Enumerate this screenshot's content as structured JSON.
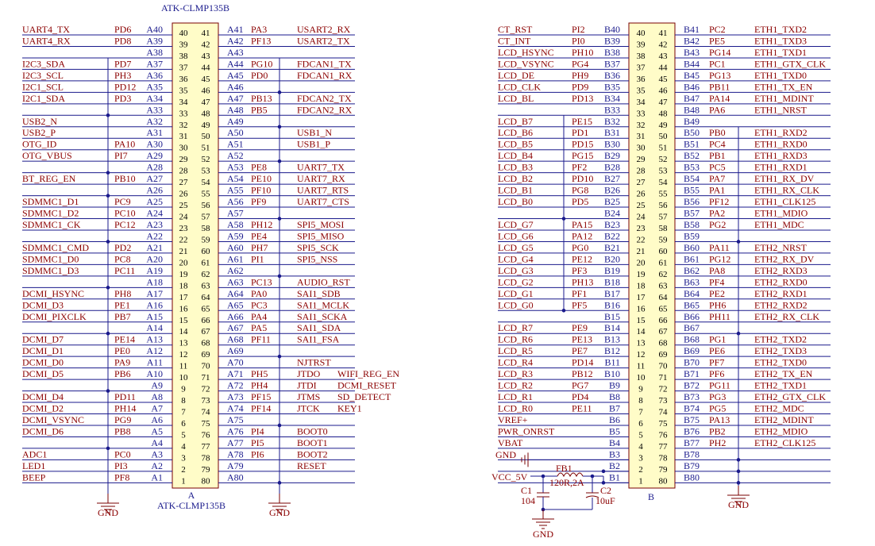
{
  "connector_a": {
    "title_top": "ATK-CLMP135B",
    "title_bottom": "ATK-CLMP135B",
    "part_label": "A",
    "gnd_left": "GND",
    "gnd_right": "GND",
    "left": [
      {
        "sig": "UART4_TX",
        "io": "PD6",
        "pin": "A40"
      },
      {
        "sig": "UART4_RX",
        "io": "PD8",
        "pin": "A39"
      },
      {
        "sig": "",
        "io": "",
        "pin": "A38"
      },
      {
        "sig": "I2C3_SDA",
        "io": "PD7",
        "pin": "A37"
      },
      {
        "sig": "I2C3_SCL",
        "io": "PH3",
        "pin": "A36"
      },
      {
        "sig": "I2C1_SCL",
        "io": "PD12",
        "pin": "A35"
      },
      {
        "sig": "I2C1_SDA",
        "io": "PD3",
        "pin": "A34"
      },
      {
        "sig": "",
        "io": "",
        "pin": "A33"
      },
      {
        "sig": "USB2_N",
        "io": "",
        "pin": "A32"
      },
      {
        "sig": "USB2_P",
        "io": "",
        "pin": "A31"
      },
      {
        "sig": "OTG_ID",
        "io": "PA10",
        "pin": "A30"
      },
      {
        "sig": "OTG_VBUS",
        "io": "PI7",
        "pin": "A29"
      },
      {
        "sig": "",
        "io": "",
        "pin": "A28"
      },
      {
        "sig": "BT_REG_EN",
        "io": "PB10",
        "pin": "A27"
      },
      {
        "sig": "",
        "io": "",
        "pin": "A26"
      },
      {
        "sig": "SDMMC1_D1",
        "io": "PC9",
        "pin": "A25"
      },
      {
        "sig": "SDMMC1_D2",
        "io": "PC10",
        "pin": "A24"
      },
      {
        "sig": "SDMMC1_CK",
        "io": "PC12",
        "pin": "A23"
      },
      {
        "sig": "",
        "io": "",
        "pin": "A22"
      },
      {
        "sig": "SDMMC1_CMD",
        "io": "PD2",
        "pin": "A21"
      },
      {
        "sig": "SDMMC1_D0",
        "io": "PC8",
        "pin": "A20"
      },
      {
        "sig": "SDMMC1_D3",
        "io": "PC11",
        "pin": "A19"
      },
      {
        "sig": "",
        "io": "",
        "pin": "A18"
      },
      {
        "sig": "DCMI_HSYNC",
        "io": "PH8",
        "pin": "A17"
      },
      {
        "sig": "DCMI_D3",
        "io": "PE1",
        "pin": "A16"
      },
      {
        "sig": "DCMI_PIXCLK",
        "io": "PB7",
        "pin": "A15"
      },
      {
        "sig": "",
        "io": "",
        "pin": "A14"
      },
      {
        "sig": "DCMI_D7",
        "io": "PE14",
        "pin": "A13"
      },
      {
        "sig": "DCMI_D1",
        "io": "PE0",
        "pin": "A12"
      },
      {
        "sig": "DCMI_D0",
        "io": "PA9",
        "pin": "A11"
      },
      {
        "sig": "DCMI_D5",
        "io": "PB6",
        "pin": "A10"
      },
      {
        "sig": "",
        "io": "",
        "pin": "A9"
      },
      {
        "sig": "DCMI_D4",
        "io": "PD11",
        "pin": "A8"
      },
      {
        "sig": "DCMI_D2",
        "io": "PH14",
        "pin": "A7"
      },
      {
        "sig": "DCMI_VSYNC",
        "io": "PG9",
        "pin": "A6"
      },
      {
        "sig": "DCMI_D6",
        "io": "PB8",
        "pin": "A5"
      },
      {
        "sig": "",
        "io": "",
        "pin": "A4"
      },
      {
        "sig": "ADC1",
        "io": "PC0",
        "pin": "A3"
      },
      {
        "sig": "LED1",
        "io": "PI3",
        "pin": "A2"
      },
      {
        "sig": "BEEP",
        "io": "PF8",
        "pin": "A1"
      }
    ],
    "right": [
      {
        "pin": "A41",
        "io": "PA3",
        "sig": "USART2_RX",
        "sig2": ""
      },
      {
        "pin": "A42",
        "io": "PF13",
        "sig": "USART2_TX",
        "sig2": ""
      },
      {
        "pin": "A43",
        "io": "",
        "sig": "",
        "sig2": ""
      },
      {
        "pin": "A44",
        "io": "PG10",
        "sig": "FDCAN1_TX",
        "sig2": ""
      },
      {
        "pin": "A45",
        "io": "PD0",
        "sig": "FDCAN1_RX",
        "sig2": ""
      },
      {
        "pin": "A46",
        "io": "",
        "sig": "",
        "sig2": ""
      },
      {
        "pin": "A47",
        "io": "PB13",
        "sig": "FDCAN2_TX",
        "sig2": ""
      },
      {
        "pin": "A48",
        "io": "PB5",
        "sig": "FDCAN2_RX",
        "sig2": ""
      },
      {
        "pin": "A49",
        "io": "",
        "sig": "",
        "sig2": ""
      },
      {
        "pin": "A50",
        "io": "",
        "sig": "USB1_N",
        "sig2": ""
      },
      {
        "pin": "A51",
        "io": "",
        "sig": "USB1_P",
        "sig2": ""
      },
      {
        "pin": "A52",
        "io": "",
        "sig": "",
        "sig2": ""
      },
      {
        "pin": "A53",
        "io": "PE8",
        "sig": "UART7_TX",
        "sig2": ""
      },
      {
        "pin": "A54",
        "io": "PE10",
        "sig": "UART7_RX",
        "sig2": ""
      },
      {
        "pin": "A55",
        "io": "PF10",
        "sig": "UART7_RTS",
        "sig2": ""
      },
      {
        "pin": "A56",
        "io": "PF9",
        "sig": "UART7_CTS",
        "sig2": ""
      },
      {
        "pin": "A57",
        "io": "",
        "sig": "",
        "sig2": ""
      },
      {
        "pin": "A58",
        "io": "PH12",
        "sig": "SPI5_MOSI",
        "sig2": ""
      },
      {
        "pin": "A59",
        "io": "PE4",
        "sig": "SPI5_MISO",
        "sig2": ""
      },
      {
        "pin": "A60",
        "io": "PH7",
        "sig": "SPI5_SCK",
        "sig2": ""
      },
      {
        "pin": "A61",
        "io": "PI1",
        "sig": "SPI5_NSS",
        "sig2": ""
      },
      {
        "pin": "A62",
        "io": "",
        "sig": "",
        "sig2": ""
      },
      {
        "pin": "A63",
        "io": "PC13",
        "sig": "AUDIO_RST",
        "sig2": ""
      },
      {
        "pin": "A64",
        "io": "PA0",
        "sig": "SAI1_SDB",
        "sig2": ""
      },
      {
        "pin": "A65",
        "io": "PC3",
        "sig": "SAI1_MCLK",
        "sig2": ""
      },
      {
        "pin": "A66",
        "io": "PA4",
        "sig": "SAI1_SCKA",
        "sig2": ""
      },
      {
        "pin": "A67",
        "io": "PA5",
        "sig": "SAI1_SDA",
        "sig2": ""
      },
      {
        "pin": "A68",
        "io": "PF11",
        "sig": "SAI1_FSA",
        "sig2": ""
      },
      {
        "pin": "A69",
        "io": "",
        "sig": "",
        "sig2": ""
      },
      {
        "pin": "A70",
        "io": "",
        "sig": "NJTRST",
        "sig2": ""
      },
      {
        "pin": "A71",
        "io": "PH5",
        "sig": "JTDO",
        "sig2": "WIFI_REG_EN"
      },
      {
        "pin": "A72",
        "io": "PH4",
        "sig": "JTDI",
        "sig2": "DCMI_RESET"
      },
      {
        "pin": "A73",
        "io": "PF15",
        "sig": "JTMS",
        "sig2": "SD_DETECT"
      },
      {
        "pin": "A74",
        "io": "PF14",
        "sig": "JTCK",
        "sig2": "KEY1"
      },
      {
        "pin": "A75",
        "io": "",
        "sig": "",
        "sig2": ""
      },
      {
        "pin": "A76",
        "io": "PI4",
        "sig": "BOOT0",
        "sig2": ""
      },
      {
        "pin": "A77",
        "io": "PI5",
        "sig": "BOOT1",
        "sig2": ""
      },
      {
        "pin": "A78",
        "io": "PI6",
        "sig": "BOOT2",
        "sig2": ""
      },
      {
        "pin": "A79",
        "io": "",
        "sig": "RESET",
        "sig2": ""
      },
      {
        "pin": "A80",
        "io": "",
        "sig": "",
        "sig2": ""
      }
    ]
  },
  "connector_b": {
    "part_label": "B",
    "gnd_left": "GND",
    "gnd_bottom": "GND",
    "gnd_right": "GND",
    "vcc": "VCC_5V",
    "fb": "FB1",
    "fb_val": "120R,2A",
    "c1": "C1",
    "c1_val": "104",
    "c2": "C2",
    "c2_val": "10uF",
    "left": [
      {
        "sig": "CT_RST",
        "io": "PI2",
        "pin": "B40"
      },
      {
        "sig": "CT_INT",
        "io": "PI0",
        "pin": "B39"
      },
      {
        "sig": "LCD_HSYNC",
        "io": "PH10",
        "pin": "B38"
      },
      {
        "sig": "LCD_VSYNC",
        "io": "PG4",
        "pin": "B37"
      },
      {
        "sig": "LCD_DE",
        "io": "PH9",
        "pin": "B36"
      },
      {
        "sig": "LCD_CLK",
        "io": "PD9",
        "pin": "B35"
      },
      {
        "sig": "LCD_BL",
        "io": "PD13",
        "pin": "B34"
      },
      {
        "sig": "",
        "io": "",
        "pin": "B33"
      },
      {
        "sig": "LCD_B7",
        "io": "PE15",
        "pin": "B32"
      },
      {
        "sig": "LCD_B6",
        "io": "PD1",
        "pin": "B31"
      },
      {
        "sig": "LCD_B5",
        "io": "PD15",
        "pin": "B30"
      },
      {
        "sig": "LCD_B4",
        "io": "PG15",
        "pin": "B29"
      },
      {
        "sig": "LCD_B3",
        "io": "PF2",
        "pin": "B28"
      },
      {
        "sig": "LCD_B2",
        "io": "PD10",
        "pin": "B27"
      },
      {
        "sig": "LCD_B1",
        "io": "PG8",
        "pin": "B26"
      },
      {
        "sig": "LCD_B0",
        "io": "PD5",
        "pin": "B25"
      },
      {
        "sig": "",
        "io": "",
        "pin": "B24"
      },
      {
        "sig": "LCD_G7",
        "io": "PA15",
        "pin": "B23"
      },
      {
        "sig": "LCD_G6",
        "io": "PA12",
        "pin": "B22"
      },
      {
        "sig": "LCD_G5",
        "io": "PG0",
        "pin": "B21"
      },
      {
        "sig": "LCD_G4",
        "io": "PE12",
        "pin": "B20"
      },
      {
        "sig": "LCD_G3",
        "io": "PF3",
        "pin": "B19"
      },
      {
        "sig": "LCD_G2",
        "io": "PH13",
        "pin": "B18"
      },
      {
        "sig": "LCD_G1",
        "io": "PF1",
        "pin": "B17"
      },
      {
        "sig": "LCD_G0",
        "io": "PF5",
        "pin": "B16"
      },
      {
        "sig": "",
        "io": "",
        "pin": "B15"
      },
      {
        "sig": "LCD_R7",
        "io": "PE9",
        "pin": "B14"
      },
      {
        "sig": "LCD_R6",
        "io": "PE13",
        "pin": "B13"
      },
      {
        "sig": "LCD_R5",
        "io": "PE7",
        "pin": "B12"
      },
      {
        "sig": "LCD_R4",
        "io": "PD14",
        "pin": "B11"
      },
      {
        "sig": "LCD_R3",
        "io": "PB12",
        "pin": "B10"
      },
      {
        "sig": "LCD_R2",
        "io": "PG7",
        "pin": "B9"
      },
      {
        "sig": "LCD_R1",
        "io": "PD4",
        "pin": "B8"
      },
      {
        "sig": "LCD_R0",
        "io": "PE11",
        "pin": "B7"
      },
      {
        "sig": "VREF+",
        "io": "",
        "pin": "B6"
      },
      {
        "sig": "PWR_ONRST",
        "io": "",
        "pin": "B5"
      },
      {
        "sig": "VBAT",
        "io": "",
        "pin": "B4"
      },
      {
        "sig": "",
        "io": "",
        "pin": "B3"
      },
      {
        "sig": "",
        "io": "",
        "pin": "B2"
      },
      {
        "sig": "",
        "io": "",
        "pin": "B1"
      }
    ],
    "right": [
      {
        "pin": "B41",
        "io": "PC2",
        "sig": "ETH1_TXD2"
      },
      {
        "pin": "B42",
        "io": "PE5",
        "sig": "ETH1_TXD3"
      },
      {
        "pin": "B43",
        "io": "PG14",
        "sig": "ETH1_TXD1"
      },
      {
        "pin": "B44",
        "io": "PC1",
        "sig": "ETH1_GTX_CLK"
      },
      {
        "pin": "B45",
        "io": "PG13",
        "sig": "ETH1_TXD0"
      },
      {
        "pin": "B46",
        "io": "PB11",
        "sig": "ETH1_TX_EN"
      },
      {
        "pin": "B47",
        "io": "PA14",
        "sig": "ETH1_MDINT"
      },
      {
        "pin": "B48",
        "io": "PA6",
        "sig": "ETH1_NRST"
      },
      {
        "pin": "B49",
        "io": "",
        "sig": ""
      },
      {
        "pin": "B50",
        "io": "PB0",
        "sig": "ETH1_RXD2"
      },
      {
        "pin": "B51",
        "io": "PC4",
        "sig": "ETH1_RXD0"
      },
      {
        "pin": "B52",
        "io": "PB1",
        "sig": "ETH1_RXD3"
      },
      {
        "pin": "B53",
        "io": "PC5",
        "sig": "ETH1_RXD1"
      },
      {
        "pin": "B54",
        "io": "PA7",
        "sig": "ETH1_RX_DV"
      },
      {
        "pin": "B55",
        "io": "PA1",
        "sig": "ETH1_RX_CLK"
      },
      {
        "pin": "B56",
        "io": "PF12",
        "sig": "ETH1_CLK125"
      },
      {
        "pin": "B57",
        "io": "PA2",
        "sig": "ETH1_MDIO"
      },
      {
        "pin": "B58",
        "io": "PG2",
        "sig": "ETH1_MDC"
      },
      {
        "pin": "B59",
        "io": "",
        "sig": ""
      },
      {
        "pin": "B60",
        "io": "PA11",
        "sig": "ETH2_NRST"
      },
      {
        "pin": "B61",
        "io": "PG12",
        "sig": "ETH2_RX_DV"
      },
      {
        "pin": "B62",
        "io": "PA8",
        "sig": "ETH2_RXD3"
      },
      {
        "pin": "B63",
        "io": "PF4",
        "sig": "ETH2_RXD0"
      },
      {
        "pin": "B64",
        "io": "PE2",
        "sig": "ETH2_RXD1"
      },
      {
        "pin": "B65",
        "io": "PH6",
        "sig": "ETH2_RXD2"
      },
      {
        "pin": "B66",
        "io": "PH11",
        "sig": "ETH2_RX_CLK"
      },
      {
        "pin": "B67",
        "io": "",
        "sig": ""
      },
      {
        "pin": "B68",
        "io": "PG1",
        "sig": "ETH2_TXD2"
      },
      {
        "pin": "B69",
        "io": "PE6",
        "sig": "ETH2_TXD3"
      },
      {
        "pin": "B70",
        "io": "PF7",
        "sig": "ETH2_TXD0"
      },
      {
        "pin": "B71",
        "io": "PF6",
        "sig": "ETH2_TX_EN"
      },
      {
        "pin": "B72",
        "io": "PG11",
        "sig": "ETH2_TXD1"
      },
      {
        "pin": "B73",
        "io": "PG3",
        "sig": "ETH2_GTX_CLK"
      },
      {
        "pin": "B74",
        "io": "PG5",
        "sig": "ETH2_MDC"
      },
      {
        "pin": "B75",
        "io": "PA13",
        "sig": "ETH2_MDINT"
      },
      {
        "pin": "B76",
        "io": "PB2",
        "sig": "ETH2_MDIO"
      },
      {
        "pin": "B77",
        "io": "PH2",
        "sig": "ETH2_CLK125"
      },
      {
        "pin": "B78",
        "io": "",
        "sig": ""
      },
      {
        "pin": "B79",
        "io": "",
        "sig": ""
      },
      {
        "pin": "B80",
        "io": "",
        "sig": ""
      }
    ]
  }
}
